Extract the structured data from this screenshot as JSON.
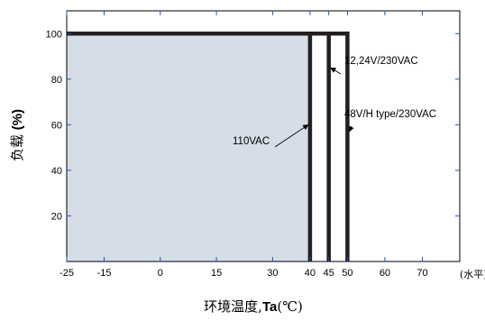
{
  "chart_data": {
    "type": "line",
    "title": "",
    "xlabel": {
      "main": "环境温度,",
      "bold": "Ta",
      "unit": "(℃)"
    },
    "ylabel": {
      "main": "负载 ",
      "bold": "(%)"
    },
    "x_unit_label": "(水平)",
    "xlim": [
      -25,
      80
    ],
    "ylim": [
      0,
      110
    ],
    "x_ticks": [
      -25,
      -15,
      0,
      15,
      30,
      40,
      45,
      50,
      60,
      70
    ],
    "x_tick_labels": [
      "-25",
      "-15",
      "0",
      "15",
      "30",
      "40",
      "45",
      "50",
      "60",
      "70"
    ],
    "y_ticks": [
      20,
      40,
      60,
      80,
      100
    ],
    "y_tick_labels": [
      "20",
      "40",
      "60",
      "80",
      "100"
    ],
    "shaded_region": {
      "x": [
        -25,
        40
      ],
      "y": [
        0,
        100
      ],
      "color": "#d5dde6"
    },
    "series": [
      {
        "name": "110VAC",
        "points": [
          [
            -25,
            100
          ],
          [
            40,
            100
          ],
          [
            40,
            0
          ]
        ]
      },
      {
        "name": "12,24V/230VAC",
        "points": [
          [
            -25,
            100
          ],
          [
            45,
            100
          ],
          [
            45,
            0
          ]
        ]
      },
      {
        "name": "48V/H type/230VAC",
        "points": [
          [
            -25,
            100
          ],
          [
            50,
            100
          ],
          [
            50,
            0
          ]
        ]
      }
    ],
    "annotations": [
      {
        "text": "110VAC",
        "series": 0
      },
      {
        "text": "12,24V/230VAC",
        "series": 1
      },
      {
        "text": "48V/H type/230VAC",
        "series": 2
      }
    ],
    "line_color": "#231f20",
    "axis_color": "#000000",
    "tick_color": "#1f4fd6",
    "grid": false
  }
}
